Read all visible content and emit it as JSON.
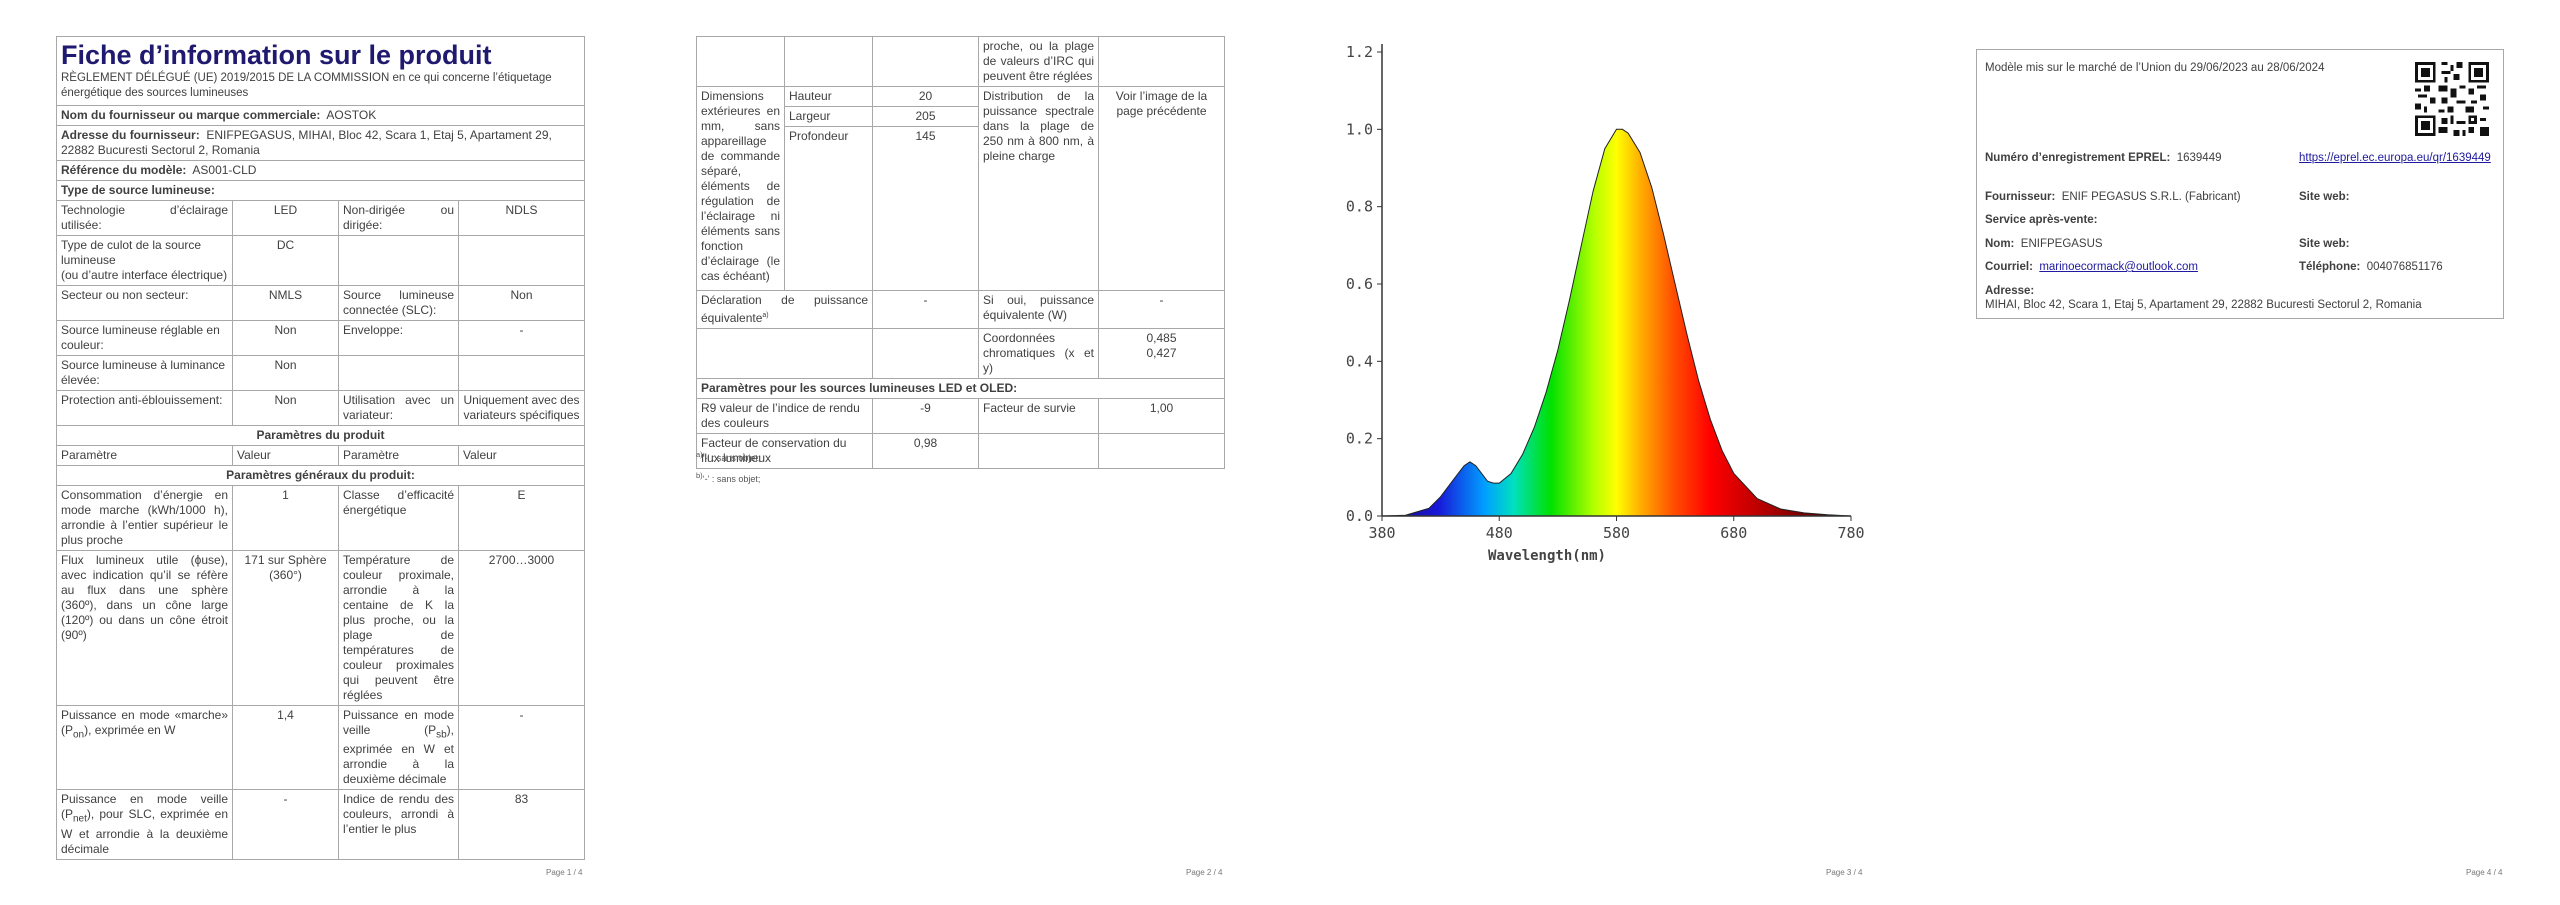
{
  "page1": {
    "title": "Fiche d’information sur le produit",
    "regulation": "RÈGLEMENT DÉLÉGUÉ (UE) 2019/2015 DE LA COMMISSION en ce qui concerne l’étiquetage énergétique des sources lumineuses",
    "supplier_name_label": "Nom du fournisseur ou marque commerciale:",
    "supplier_name_value": "AOSTOK",
    "supplier_address_label": "Adresse du fournisseur:",
    "supplier_address_value": "ENIFPEGASUS, MIHAI, Bloc 42, Scara 1, Etaj 5, Apartament 29, 22882 Bucuresti Sectorul 2, Romania",
    "model_label": "Référence du modèle:",
    "model_value": "AS001-CLD",
    "type_header": "Type de source lumineuse:",
    "tech_label": "Technologie d’éclairage utilisée:",
    "tech_value": "LED",
    "directional_label": "Non-dirigée ou dirigée:",
    "directional_value": "NDLS",
    "cap_label": "Type de culot de la source lumineuse",
    "cap_sub": "(ou d’autre interface électrique)",
    "cap_value": "DC",
    "mains_label": "Secteur ou non secteur:",
    "mains_value": "NMLS",
    "slc_label": "Source lumineuse connectée (SLC):",
    "slc_value": "Non",
    "tunable_label": "Source lumineuse réglable en couleur:",
    "tunable_value": "Non",
    "envelope_label": "Enveloppe:",
    "envelope_value": "-",
    "high_lum_label": "Source lumineuse à luminance élevée:",
    "high_lum_value": "Non",
    "glare_label": "Protection anti-éblouissement:",
    "glare_value": "Non",
    "dimmer_label": "Utilisation avec un variateur:",
    "dimmer_value": "Uniquement avec des variateurs spécifiques",
    "params_header": "Paramètres du produit",
    "col_param": "Paramètre",
    "col_value": "Valeur",
    "general_header": "Paramètres généraux du produit:",
    "energy_label": "Consommation d’énergie en mode marche (kWh/1000 h), arrondie à l’entier supérieur le plus proche",
    "energy_value": "1",
    "class_label": "Classe d’efficacité énergétique",
    "class_value": "E",
    "flux_label": "Flux lumineux utile (ϕuse), avec indication qu’il se réfère au flux dans une sphère (360º), dans un cône large (120º) ou dans un cône étroit (90º)",
    "flux_value": "171 sur Sphère (360°)",
    "cct_label": "Température de couleur proximale, arrondie à la centaine de K la plus proche, ou la plage de températures de couleur proximales qui peuvent être réglées",
    "cct_value": "2700…3000",
    "on_power_label": "Puissance en mode «marche» (P",
    "on_power_sub": "on",
    "on_power_tail": "), exprimée en W",
    "on_power_value": "1,4",
    "standby_label": "Puissance en mode veille (P",
    "standby_sub": "sb",
    "standby_tail": "), exprimée en W et arrondie à la deuxième décimale",
    "standby_value": "-",
    "net_label": "Puissance en mode veille (P",
    "net_sub": "net",
    "net_tail": "), pour SLC, exprimée en W et arrondie à la deuxième décimale",
    "net_value": "-",
    "cri_label": "Indice de rendu des couleurs, arrondi à l’entier le plus",
    "cri_value": "83",
    "page_number": "Page 1 / 4"
  },
  "page2": {
    "cri_cont": "proche, ou la plage de valeurs d’IRC qui peuvent être réglées",
    "dims_label": "Dimensions extérieures en mm, sans appareillage de commande séparé, éléments de régulation de l’éclairage ni éléments sans fonction d’éclairage (le cas échéant)",
    "height_label": "Hauteur",
    "height_value": "20",
    "width_label": "Largeur",
    "width_value": "205",
    "depth_label": "Profondeur",
    "depth_value": "145",
    "spd_label": "Distribution de la puissance spectrale dans la plage de 250 nm à 800 nm, à pleine charge",
    "spd_value": "Voir l’image de la page précédente",
    "equiv_label": "Déclaration de puissance équivalente",
    "equiv_sup": "a)",
    "equiv_value": "-",
    "equiv_w_label": "Si oui, puissance équivalente (W)",
    "equiv_w_value": "-",
    "chroma_label": "Coordonnées chromatiques (x et y)",
    "chroma_x": "0,485",
    "chroma_y": "0,427",
    "led_header": "Paramètres pour les sources lumineuses LED et OLED:",
    "r9_label": "R9 valeur de l’indice de rendu des couleurs",
    "r9_value": "-9",
    "survival_label": "Facteur de survie",
    "survival_value": "1,00",
    "lumen_label": "Facteur de conservation du flux lumineux",
    "lumen_value": "0,98",
    "note_a_sup": "a)",
    "note_a": "‘-’ : sans objet;",
    "note_b_sup": "b)",
    "note_b": "‘-’ : sans objet;",
    "page_number": "Page 2 / 4"
  },
  "page3": {
    "page_number": "Page 3 / 4"
  },
  "chart_data": {
    "type": "area",
    "title": "",
    "xlabel": "Wavelength(nm)",
    "ylabel": "",
    "xlim": [
      380,
      780
    ],
    "ylim": [
      0,
      1.2
    ],
    "x_ticks": [
      "380",
      "480",
      "580",
      "680",
      "780"
    ],
    "y_ticks": [
      "0.0",
      "0.2",
      "0.4",
      "0.6",
      "0.8",
      "1.0",
      "1.2"
    ],
    "grid": false,
    "series": [
      {
        "x": [
          380,
          400,
          420,
          430,
          440,
          450,
          455,
          460,
          465,
          470,
          475,
          480,
          490,
          500,
          510,
          520,
          530,
          540,
          550,
          560,
          570,
          580,
          585,
          590,
          600,
          610,
          620,
          630,
          640,
          650,
          660,
          670,
          680,
          700,
          720,
          740,
          760,
          780
        ],
        "y": [
          0.0,
          0.002,
          0.02,
          0.05,
          0.09,
          0.13,
          0.14,
          0.13,
          0.11,
          0.09,
          0.085,
          0.085,
          0.11,
          0.16,
          0.23,
          0.32,
          0.43,
          0.56,
          0.7,
          0.84,
          0.95,
          1.0,
          1.0,
          0.99,
          0.94,
          0.85,
          0.73,
          0.6,
          0.47,
          0.35,
          0.25,
          0.17,
          0.11,
          0.045,
          0.018,
          0.008,
          0.003,
          0.0
        ]
      }
    ]
  },
  "page4": {
    "market_text": "Modèle mis sur le marché de l’Union du 29/06/2023 au 28/06/2024",
    "eprel_label": "Numéro d’enregistrement EPREL:",
    "eprel_value": "1639449",
    "eprel_link": "https://eprel.ec.europa.eu/qr/1639449",
    "supplier_label": "Fournisseur:",
    "supplier_value": "ENIF PEGASUS S.R.L. (Fabricant)",
    "website_label_1": "Site web:",
    "service_label": "Service après-vente:",
    "name_label": "Nom:",
    "name_value": "ENIFPEGASUS",
    "website_label_2": "Site web:",
    "email_label": "Courriel:",
    "email_value": "marinoecormack@outlook.com",
    "phone_label": "Téléphone:",
    "phone_value": "004076851176",
    "address_label": "Adresse:",
    "address_value": "MIHAI, Bloc 42, Scara 1, Etaj 5, Apartament 29, 22882 Bucuresti Sectorul 2, Romania",
    "qr_icon": "qr-code-icon",
    "page_number": "Page 4 / 4"
  }
}
